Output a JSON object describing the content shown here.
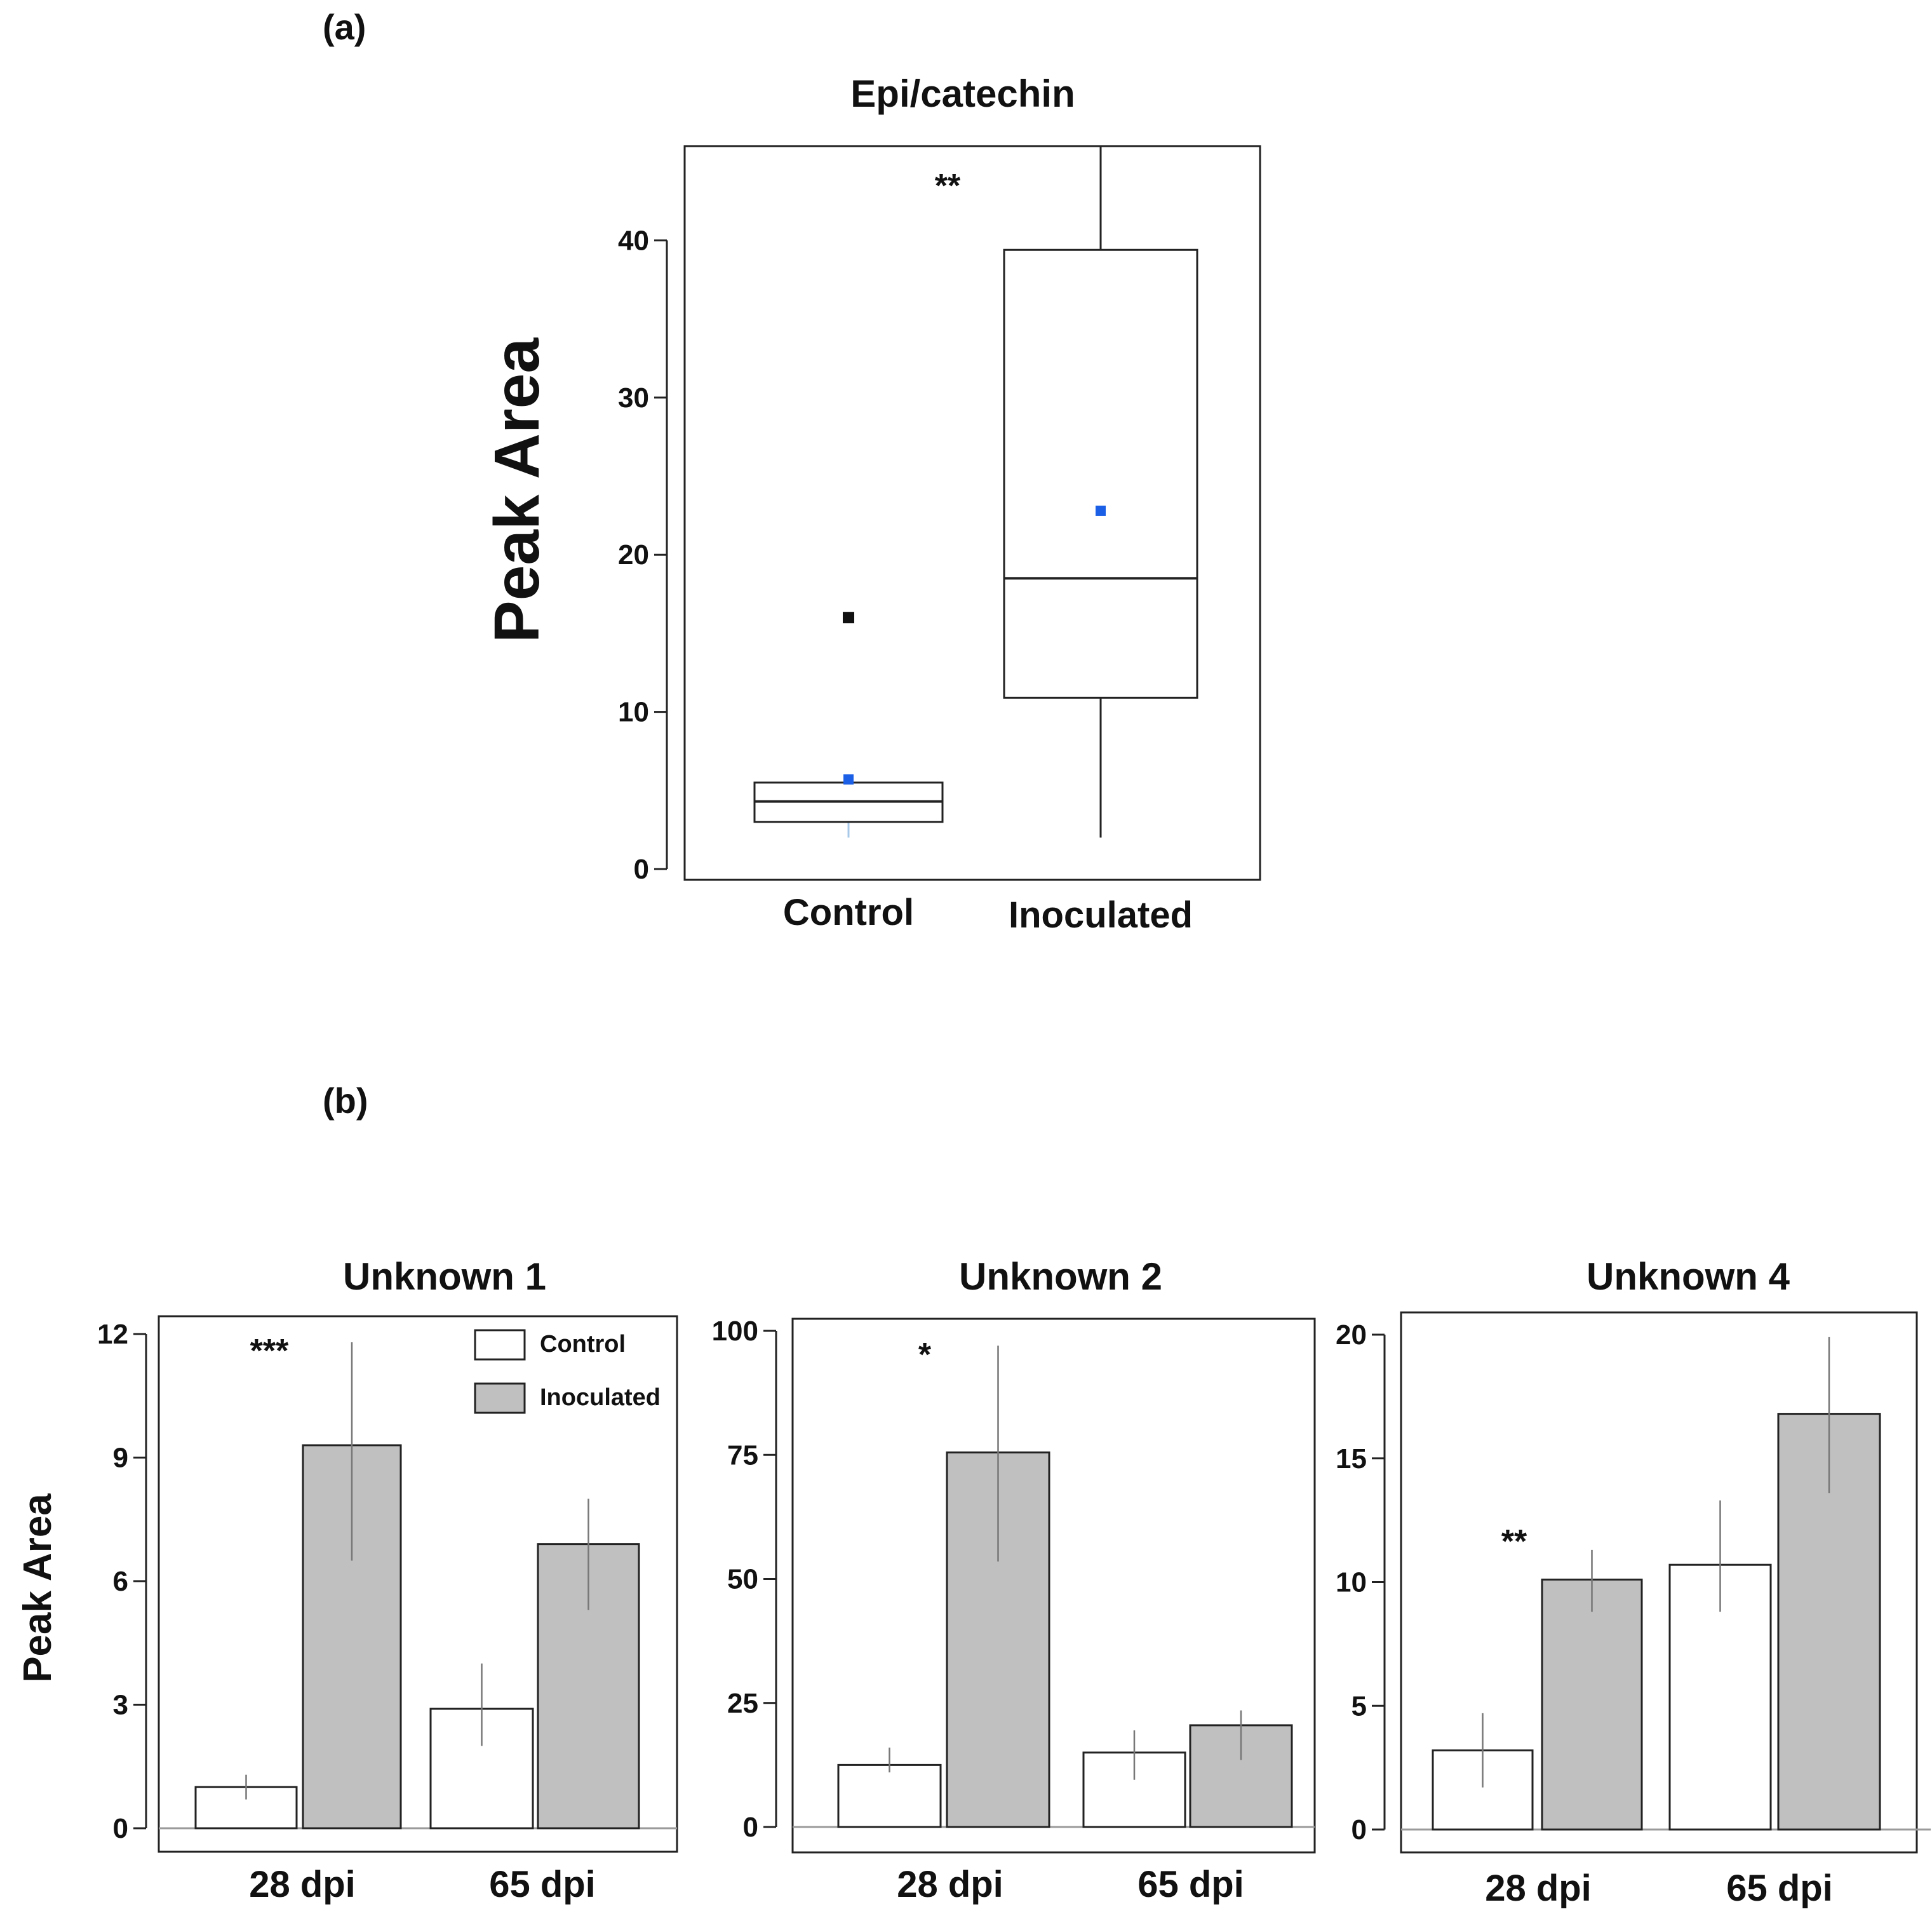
{
  "panel_a_label": "(a)",
  "panel_b_label": "(b)",
  "colors": {
    "mean_marker": "#1a5fe6",
    "bar_control": "#ffffff",
    "bar_inoculated": "#c0c0c0",
    "outline": "#222222",
    "baseline": "#9a9a9a"
  },
  "chart_data": [
    {
      "type": "box",
      "title": "Epi/catechin",
      "ylabel": "Peak Area",
      "xlabel": "",
      "ylim": [
        0,
        46
      ],
      "yticks": [
        0,
        10,
        20,
        30,
        40
      ],
      "significance": "**",
      "groups": [
        {
          "name": "Control",
          "whisker_low": 2,
          "q1": 3,
          "median": 4.3,
          "q3": 5.5,
          "whisker_high": 5.5,
          "mean": 5.7,
          "outliers": [
            16
          ]
        },
        {
          "name": "Inoculated",
          "whisker_low": 2,
          "q1": 10.9,
          "median": 18.5,
          "q3": 39.4,
          "whisker_high": 46,
          "mean": 22.8,
          "outliers": []
        }
      ]
    },
    {
      "type": "bar",
      "title": "Unknown 1",
      "ylabel": "Peak Area",
      "ylim": [
        0,
        12
      ],
      "yticks": [
        0,
        3,
        6,
        9,
        12
      ],
      "categories": [
        "28 dpi",
        "65 dpi"
      ],
      "series": [
        {
          "name": "Control",
          "values": [
            1.0,
            2.9
          ],
          "err_low": [
            0.7,
            2.0
          ],
          "err_high": [
            1.3,
            4.0
          ]
        },
        {
          "name": "Inoculated",
          "values": [
            9.3,
            6.9
          ],
          "err_low": [
            6.5,
            5.3
          ],
          "err_high": [
            11.8,
            8.0
          ]
        }
      ],
      "significance": [
        "***",
        ""
      ],
      "legend": [
        "Control",
        "Inoculated"
      ]
    },
    {
      "type": "bar",
      "title": "Unknown 2",
      "ylim": [
        0,
        100
      ],
      "yticks": [
        0,
        25,
        50,
        75,
        100
      ],
      "categories": [
        "28 dpi",
        "65 dpi"
      ],
      "series": [
        {
          "name": "Control",
          "values": [
            12.5,
            15
          ],
          "err_low": [
            11,
            9.5
          ],
          "err_high": [
            16,
            19.5
          ]
        },
        {
          "name": "Inoculated",
          "values": [
            75.5,
            20.5
          ],
          "err_low": [
            53.5,
            13.5
          ],
          "err_high": [
            97,
            23.5
          ]
        }
      ],
      "significance": [
        "*",
        ""
      ]
    },
    {
      "type": "bar",
      "title": "Unknown 4",
      "ylim": [
        0,
        20
      ],
      "yticks": [
        0,
        5,
        10,
        15,
        20
      ],
      "categories": [
        "28 dpi",
        "65 dpi"
      ],
      "series": [
        {
          "name": "Control",
          "values": [
            3.2,
            10.7
          ],
          "err_low": [
            1.7,
            8.8
          ],
          "err_high": [
            4.7,
            13.3
          ]
        },
        {
          "name": "Inoculated",
          "values": [
            10.1,
            16.8
          ],
          "err_low": [
            8.8,
            13.6
          ],
          "err_high": [
            11.3,
            19.9
          ]
        }
      ],
      "significance": [
        "**",
        ""
      ]
    }
  ]
}
